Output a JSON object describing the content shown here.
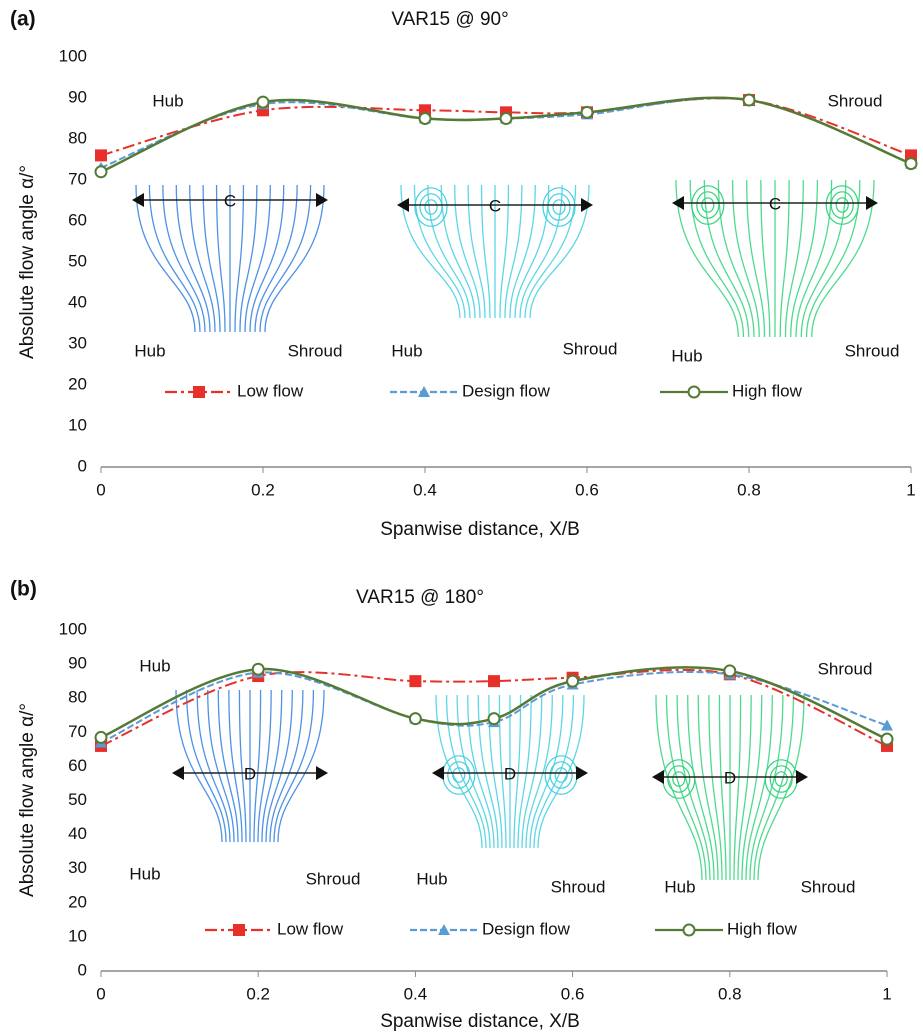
{
  "chart_data": [
    {
      "type": "line",
      "panel_label": "(a)",
      "title": "VAR15 @ 90°",
      "xlabel": "Spanwise distance, X/B",
      "ylabel": "Absolute flow angle α/°",
      "x": [
        0,
        0.2,
        0.4,
        0.5,
        0.6,
        0.8,
        1
      ],
      "series": [
        {
          "name": "Low flow",
          "color": "#e8302a",
          "style": "dashdot",
          "marker": "square",
          "values": [
            76,
            87,
            87,
            86.5,
            86.5,
            89.5,
            76
          ]
        },
        {
          "name": "Design flow",
          "color": "#5b9bd5",
          "style": "dashed",
          "marker": "triangle",
          "values": [
            73,
            88.5,
            85,
            85,
            86,
            89.5,
            74
          ]
        },
        {
          "name": "High flow",
          "color": "#557a35",
          "style": "solid",
          "marker": "circle",
          "values": [
            72,
            89,
            85,
            85,
            86.5,
            89.5,
            74
          ]
        }
      ],
      "xlim": [
        0,
        1
      ],
      "xticks": [
        0,
        0.2,
        0.4,
        0.6,
        0.8,
        1
      ],
      "ylim": [
        0,
        100
      ],
      "yticks": [
        0,
        10,
        20,
        30,
        40,
        50,
        60,
        70,
        80,
        90,
        100
      ],
      "annotations": [
        "Hub",
        "Shroud"
      ],
      "insets": [
        {
          "label": "C",
          "hub": "Hub",
          "shroud": "Shroud",
          "color": "#2f7fe0"
        },
        {
          "label": "C",
          "hub": "Hub",
          "shroud": "Shroud",
          "color": "#3fd0e0"
        },
        {
          "label": "C",
          "hub": "Hub",
          "shroud": "Shroud",
          "color": "#2fd47a"
        }
      ]
    },
    {
      "type": "line",
      "panel_label": "(b)",
      "title": "VAR15 @ 180°",
      "xlabel": "Spanwise distance, X/B",
      "ylabel": "Absolute flow angle α/°",
      "x": [
        0,
        0.2,
        0.4,
        0.5,
        0.6,
        0.8,
        1
      ],
      "series": [
        {
          "name": "Low flow",
          "color": "#e8302a",
          "style": "dashdot",
          "marker": "square",
          "values": [
            66,
            86.5,
            85,
            85,
            86,
            87,
            66
          ]
        },
        {
          "name": "Design flow",
          "color": "#5b9bd5",
          "style": "dashed",
          "marker": "triangle",
          "values": [
            67,
            87.5,
            74,
            73,
            84,
            87,
            72
          ]
        },
        {
          "name": "High flow",
          "color": "#557a35",
          "style": "solid",
          "marker": "circle",
          "values": [
            68.5,
            88.5,
            74,
            74,
            85,
            88,
            68
          ]
        }
      ],
      "xlim": [
        0,
        1
      ],
      "xticks": [
        0,
        0.2,
        0.4,
        0.6,
        0.8,
        1
      ],
      "ylim": [
        0,
        100
      ],
      "yticks": [
        0,
        10,
        20,
        30,
        40,
        50,
        60,
        70,
        80,
        90,
        100
      ],
      "annotations": [
        "Hub",
        "Shroud"
      ],
      "insets": [
        {
          "label": "D",
          "hub": "Hub",
          "shroud": "Shroud",
          "color": "#2f7fe0"
        },
        {
          "label": "D",
          "hub": "Hub",
          "shroud": "Shroud",
          "color": "#3fd0e0"
        },
        {
          "label": "D",
          "hub": "Hub",
          "shroud": "Shroud",
          "color": "#2fd47a"
        }
      ]
    }
  ]
}
